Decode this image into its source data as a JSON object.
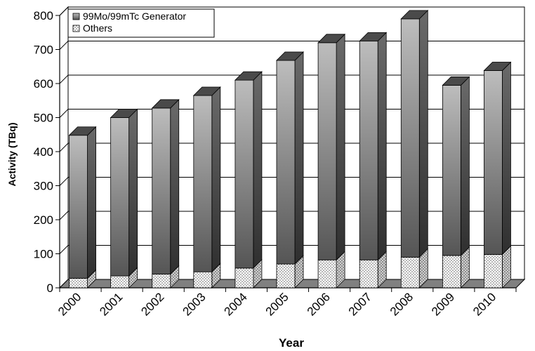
{
  "chart_data": {
    "type": "bar",
    "stacked": true,
    "three_d": true,
    "categories": [
      "2000",
      "2001",
      "2002",
      "2003",
      "2004",
      "2005",
      "2006",
      "2007",
      "2008",
      "2009",
      "2010"
    ],
    "series": [
      {
        "name": "Others",
        "values": [
          28,
          35,
          40,
          47,
          58,
          70,
          82,
          82,
          90,
          95,
          98
        ],
        "color": "#ffffff",
        "pattern": "dotted"
      },
      {
        "name": "99Mo/99mTc Generator",
        "values": [
          420,
          465,
          488,
          518,
          552,
          598,
          638,
          643,
          700,
          500,
          540
        ],
        "color": "#6e6e6e",
        "pattern": "gradient"
      }
    ],
    "xlabel": "Year",
    "ylabel": "Activity (TBq)",
    "ylim": [
      0,
      800
    ],
    "yticks": [
      "0",
      "100",
      "200",
      "300",
      "400",
      "500",
      "600",
      "700",
      "800"
    ],
    "grid": true,
    "legend": {
      "position": "top-left",
      "entries": [
        "99Mo/99mTc Generator",
        "Others"
      ]
    }
  }
}
